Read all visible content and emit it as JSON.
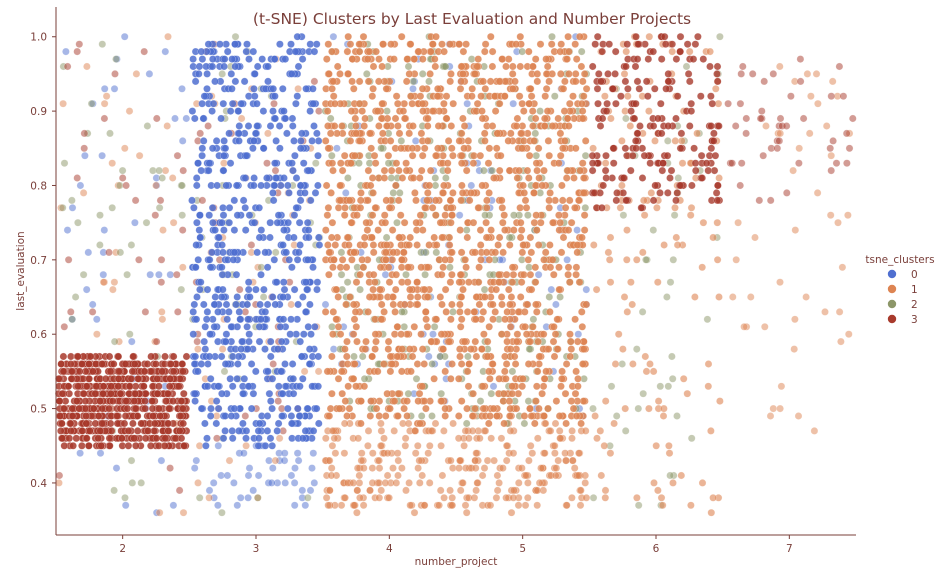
{
  "chart_data": {
    "type": "scatter",
    "title": "(t-SNE) Clusters by Last Evaluation and Number Projects",
    "xlabel": "number_project",
    "ylabel": "last_evaluation",
    "xlim": [
      1.5,
      7.5
    ],
    "ylim": [
      0.33,
      1.04
    ],
    "xticks": [
      "2",
      "3",
      "4",
      "5",
      "6",
      "7"
    ],
    "yticks": [
      "0.4",
      "0.5",
      "0.6",
      "0.7",
      "0.8",
      "0.9",
      "1.0"
    ],
    "grid": false,
    "jitter": "horizontal jitter within each number_project column",
    "legend": {
      "title": "tsne_clusters",
      "placement": "right",
      "items": [
        {
          "label": "0",
          "color": "#4f6fd0"
        },
        {
          "label": "1",
          "color": "#dd8452"
        },
        {
          "label": "2",
          "color": "#8c9668"
        },
        {
          "label": "3",
          "color": "#a83a2c"
        }
      ]
    },
    "series": [
      {
        "name": "0",
        "color": "#4f6fd0",
        "regions": [
          {
            "x": 3,
            "y": [
              0.45,
              1.0
            ],
            "density": "very high"
          },
          {
            "x": 2,
            "y": [
              0.36,
              1.0
            ],
            "density": "low"
          },
          {
            "x": 3,
            "y": [
              0.36,
              0.45
            ],
            "density": "low"
          },
          {
            "x": 4,
            "y": [
              0.48,
              1.0
            ],
            "density": "low"
          },
          {
            "x": 5,
            "y": [
              0.48,
              1.0
            ],
            "density": "low"
          }
        ]
      },
      {
        "name": "1",
        "color": "#dd8452",
        "regions": [
          {
            "x": 4,
            "y": [
              0.48,
              1.0
            ],
            "density": "very high"
          },
          {
            "x": 5,
            "y": [
              0.48,
              1.0
            ],
            "density": "very high"
          },
          {
            "x": 2,
            "y": [
              0.36,
              1.0
            ],
            "density": "low"
          },
          {
            "x": 3,
            "y": [
              0.36,
              1.0
            ],
            "density": "low"
          },
          {
            "x": 4,
            "y": [
              0.36,
              0.48
            ],
            "density": "medium"
          },
          {
            "x": 5,
            "y": [
              0.36,
              0.48
            ],
            "density": "medium"
          },
          {
            "x": 6,
            "y": [
              0.36,
              1.0
            ],
            "density": "medium"
          },
          {
            "x": 7,
            "y": [
              0.46,
              0.97
            ],
            "density": "low"
          }
        ]
      },
      {
        "name": "2",
        "color": "#8c9668",
        "regions": [
          {
            "x": 4,
            "y": [
              0.48,
              1.0
            ],
            "density": "medium"
          },
          {
            "x": 5,
            "y": [
              0.48,
              1.0
            ],
            "density": "medium"
          },
          {
            "x": 2,
            "y": [
              0.36,
              1.0
            ],
            "density": "low"
          },
          {
            "x": 3,
            "y": [
              0.36,
              1.0
            ],
            "density": "low"
          },
          {
            "x": 6,
            "y": [
              0.36,
              1.0
            ],
            "density": "low"
          }
        ]
      },
      {
        "name": "3",
        "color": "#a83a2c",
        "regions": [
          {
            "x": 2,
            "y": [
              0.45,
              0.57
            ],
            "density": "very high"
          },
          {
            "x": 6,
            "y": [
              0.77,
              1.0
            ],
            "density": "high"
          },
          {
            "x": 7,
            "y": [
              0.77,
              0.97
            ],
            "density": "low"
          },
          {
            "x": 3,
            "y": [
              0.45,
              1.0
            ],
            "density": "low"
          },
          {
            "x": 2,
            "y": [
              0.36,
              1.0
            ],
            "density": "low"
          }
        ]
      }
    ]
  }
}
